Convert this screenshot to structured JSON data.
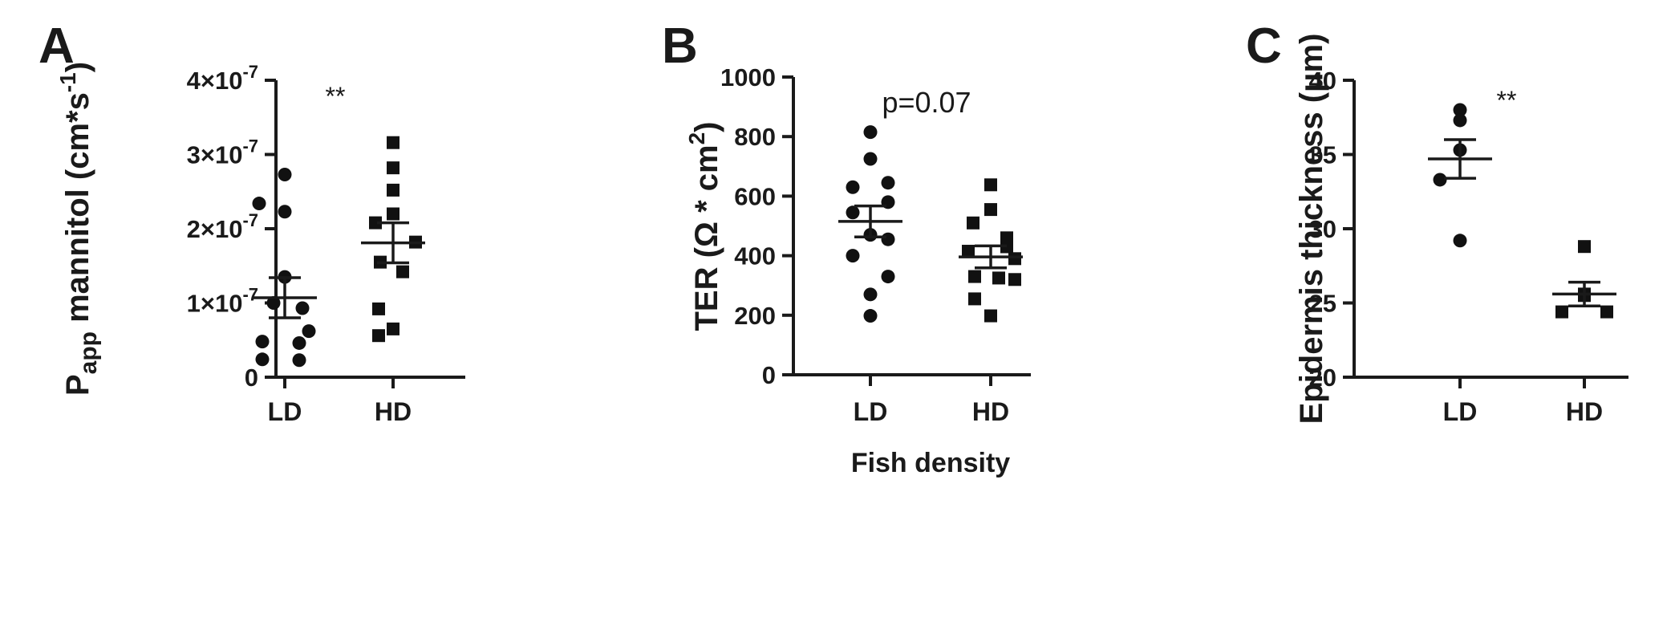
{
  "chart_data": [
    {
      "panel": "A",
      "type": "scatter",
      "categories": [
        "LD",
        "HD"
      ],
      "ylabel_main": "P",
      "ylabel_sub": "app",
      "ylabel_rest": " mannitol (cm*s",
      "ylabel_sup": "-1",
      "ylabel_end": ")",
      "ylim": [
        0,
        4e-07
      ],
      "yticks": [
        {
          "value": 0,
          "label": "0"
        },
        {
          "value": 1e-07,
          "base": "1×10",
          "exp": "-7"
        },
        {
          "value": 2e-07,
          "base": "2×10",
          "exp": "-7"
        },
        {
          "value": 3e-07,
          "base": "3×10",
          "exp": "-7"
        },
        {
          "value": 4e-07,
          "base": "4×10",
          "exp": "-7"
        }
      ],
      "annotation": "**",
      "series": [
        {
          "category": "LD",
          "marker": "circle",
          "mean": 1.07e-07,
          "sem": 2.7e-08,
          "values": [
            2.73e-07,
            2.34e-07,
            2.23e-07,
            1.35e-07,
            1e-07,
            9.3e-08,
            6.2e-08,
            4.8e-08,
            4.6e-08,
            2.4e-08,
            2.3e-08
          ]
        },
        {
          "category": "HD",
          "marker": "square",
          "mean": 1.81e-07,
          "sem": 2.7e-08,
          "values": [
            3.16e-07,
            2.82e-07,
            2.52e-07,
            2.2e-07,
            2.08e-07,
            1.82e-07,
            1.55e-07,
            1.42e-07,
            9.2e-08,
            6.5e-08,
            5.6e-08
          ]
        }
      ]
    },
    {
      "panel": "B",
      "type": "scatter",
      "categories": [
        "LD",
        "HD"
      ],
      "ylabel_main": "TER (Ω * cm",
      "ylabel_sup": "2",
      "ylabel_end": ")",
      "xlabel": "Fish density",
      "ylim": [
        0,
        1000
      ],
      "yticks": [
        {
          "value": 0,
          "label": "0"
        },
        {
          "value": 200,
          "label": "200"
        },
        {
          "value": 400,
          "label": "400"
        },
        {
          "value": 600,
          "label": "600"
        },
        {
          "value": 800,
          "label": "800"
        },
        {
          "value": 1000,
          "label": "1000"
        }
      ],
      "annotation": "p=0.07",
      "series": [
        {
          "category": "LD",
          "marker": "circle",
          "mean": 515,
          "sem": 52,
          "values": [
            815,
            725,
            645,
            630,
            580,
            545,
            470,
            455,
            400,
            330,
            270,
            198
          ]
        },
        {
          "category": "HD",
          "marker": "square",
          "mean": 396,
          "sem": 37,
          "values": [
            638,
            555,
            510,
            460,
            430,
            415,
            390,
            330,
            325,
            320,
            255,
            198
          ]
        }
      ]
    },
    {
      "panel": "C",
      "type": "scatter",
      "categories": [
        "LD",
        "HD"
      ],
      "ylabel_main": "Epidermis thickness (μm)",
      "ylim": [
        20,
        40
      ],
      "yticks": [
        {
          "value": 20,
          "label": "20"
        },
        {
          "value": 25,
          "label": "25"
        },
        {
          "value": 30,
          "label": "30"
        },
        {
          "value": 35,
          "label": "35"
        },
        {
          "value": 40,
          "label": "40"
        }
      ],
      "annotation": "**",
      "series": [
        {
          "category": "LD",
          "marker": "circle",
          "mean": 34.7,
          "sem": 1.3,
          "values": [
            38.0,
            37.3,
            35.3,
            33.3,
            29.2
          ]
        },
        {
          "category": "HD",
          "marker": "square",
          "mean": 25.6,
          "sem": 0.8,
          "values": [
            28.8,
            25.6,
            25.5,
            24.4,
            24.4
          ]
        }
      ]
    }
  ]
}
